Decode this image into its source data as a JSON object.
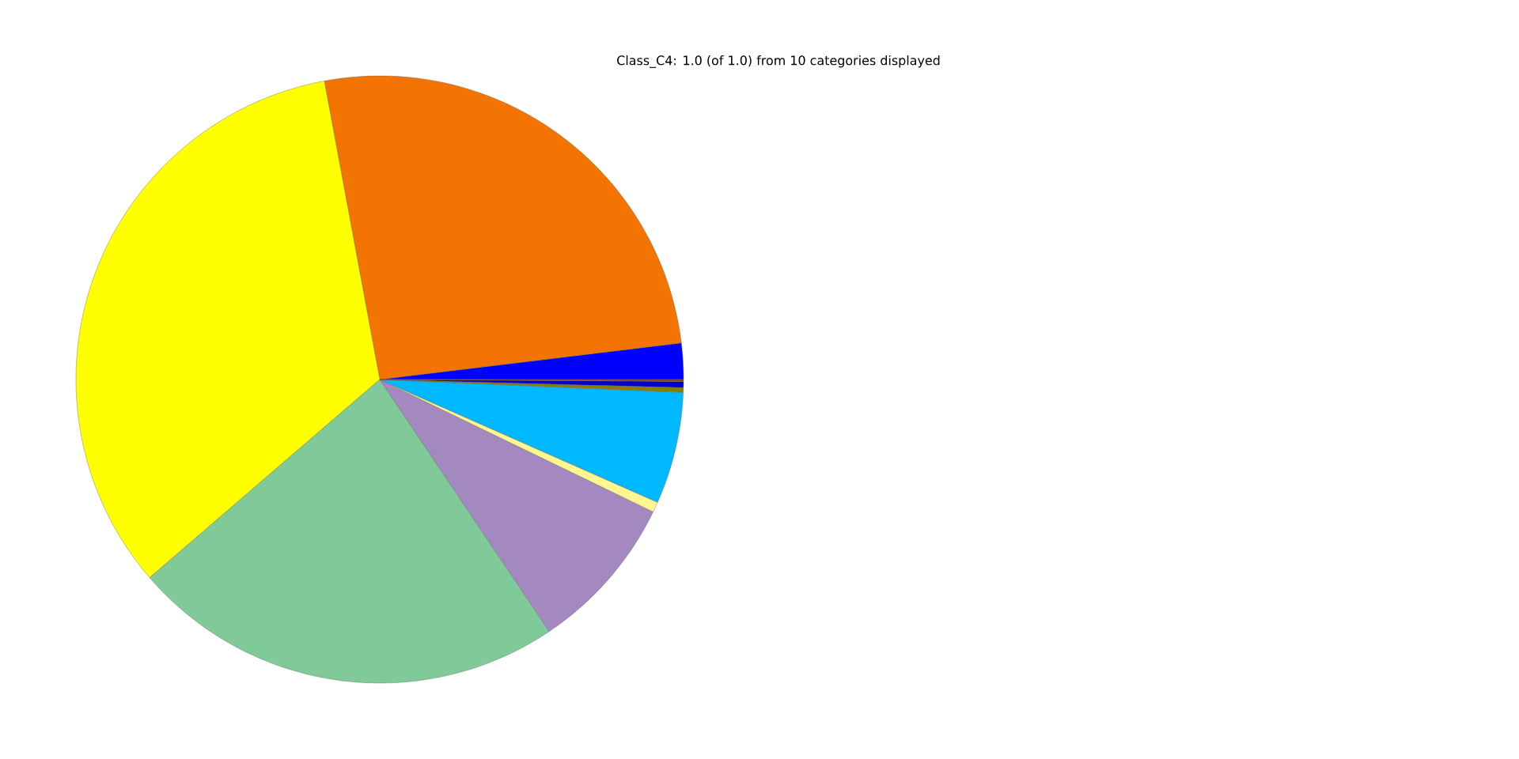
{
  "chart_data": {
    "type": "pie",
    "title": "Class_C4: 1.0 (of 1.0) from 10 categories displayed",
    "categories": [
      null,
      null,
      null,
      null,
      null,
      null,
      null,
      null,
      null,
      null
    ],
    "values": [
      1.92,
      26.0,
      33.4,
      23.1,
      8.4,
      0.55,
      5.95,
      0.25,
      0.33,
      0.1
    ],
    "colors": [
      "#0000ff",
      "#f37303",
      "#ffff00",
      "#80ca9a",
      "#a489c0",
      "#fff68f",
      "#00b8ff",
      "#8b7d00",
      "#0000cd",
      "#8b4513"
    ]
  }
}
